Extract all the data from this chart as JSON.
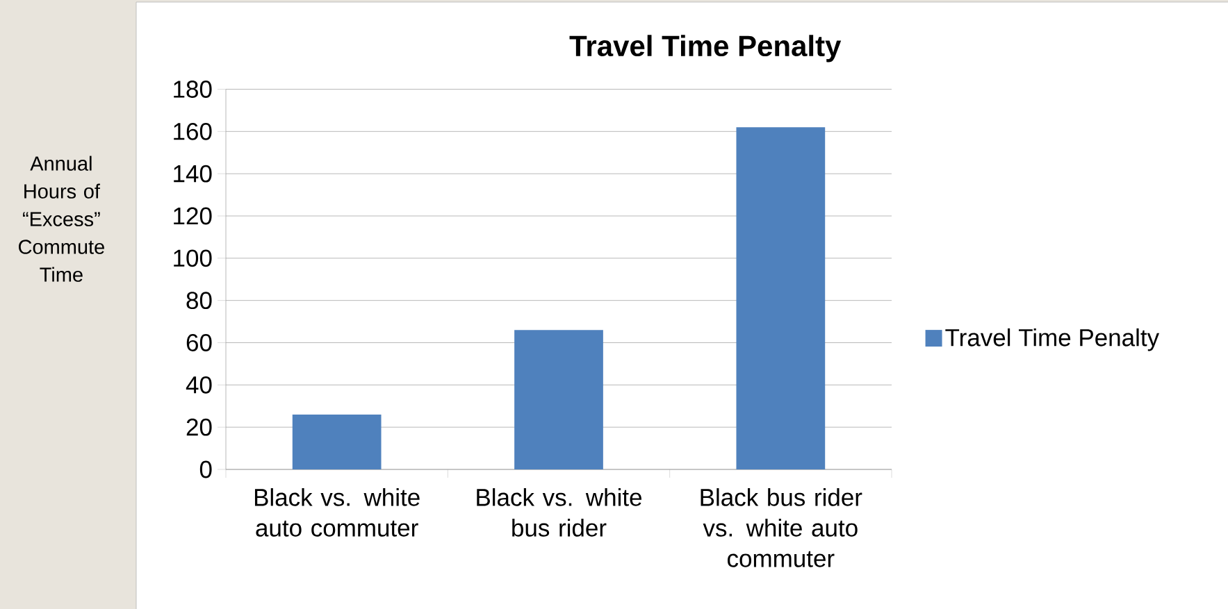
{
  "chart_data": {
    "type": "bar",
    "title": "Travel Time Penalty",
    "ylabel": "Annual Hours of “Excess” Commute Time",
    "categories": [
      "Black vs. white auto commuter",
      "Black vs. white bus rider",
      "Black bus rider vs. white auto commuter"
    ],
    "series": [
      {
        "name": "Travel Time Penalty",
        "color": "#4f81bd",
        "values": [
          26,
          66,
          162
        ]
      }
    ],
    "ylim": [
      0,
      180
    ],
    "yticks": [
      0,
      20,
      40,
      60,
      80,
      100,
      120,
      140,
      160,
      180
    ],
    "grid": "y",
    "legend": "right"
  }
}
